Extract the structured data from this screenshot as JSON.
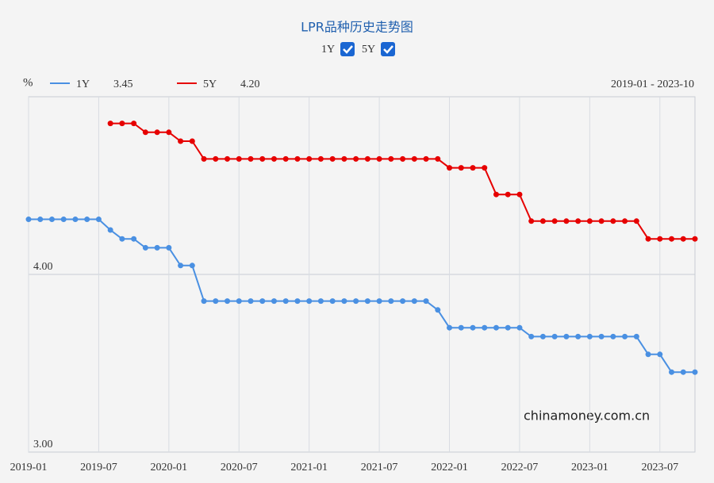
{
  "chart_data": {
    "type": "line",
    "title": "LPR品种历史走势图",
    "y_unit": "%",
    "date_range": "2019-01 - 2023-10",
    "watermark": "chinamoney.com.cn",
    "categories": [
      "2019-01",
      null,
      null,
      null,
      null,
      null,
      "2019-07",
      null,
      null,
      null,
      null,
      null,
      "2020-01",
      null,
      null,
      null,
      null,
      null,
      "2020-07",
      null,
      null,
      null,
      null,
      null,
      "2021-01",
      null,
      null,
      null,
      null,
      null,
      "2021-07",
      null,
      null,
      null,
      null,
      null,
      "2022-01",
      null,
      null,
      null,
      null,
      null,
      "2022-07",
      null,
      null,
      null,
      null,
      null,
      "2023-01",
      null,
      null,
      null,
      null,
      null,
      "2023-07",
      null,
      null,
      null
    ],
    "series": [
      {
        "name": "1Y",
        "color": "#4a90e2",
        "legend_value": "3.45",
        "values": [
          4.31,
          4.31,
          4.31,
          4.31,
          4.31,
          4.31,
          4.31,
          4.25,
          4.2,
          4.2,
          4.15,
          4.15,
          4.15,
          4.05,
          4.05,
          3.85,
          3.85,
          3.85,
          3.85,
          3.85,
          3.85,
          3.85,
          3.85,
          3.85,
          3.85,
          3.85,
          3.85,
          3.85,
          3.85,
          3.85,
          3.85,
          3.85,
          3.85,
          3.85,
          3.85,
          3.8,
          3.7,
          3.7,
          3.7,
          3.7,
          3.7,
          3.7,
          3.7,
          3.65,
          3.65,
          3.65,
          3.65,
          3.65,
          3.65,
          3.65,
          3.65,
          3.65,
          3.65,
          3.55,
          3.55,
          3.45,
          3.45,
          3.45
        ]
      },
      {
        "name": "5Y",
        "color": "#e60000",
        "legend_value": "4.20",
        "values": [
          null,
          null,
          null,
          null,
          null,
          null,
          null,
          4.85,
          4.85,
          4.85,
          4.8,
          4.8,
          4.8,
          4.75,
          4.75,
          4.65,
          4.65,
          4.65,
          4.65,
          4.65,
          4.65,
          4.65,
          4.65,
          4.65,
          4.65,
          4.65,
          4.65,
          4.65,
          4.65,
          4.65,
          4.65,
          4.65,
          4.65,
          4.65,
          4.65,
          4.65,
          4.6,
          4.6,
          4.6,
          4.6,
          4.45,
          4.45,
          4.45,
          4.3,
          4.3,
          4.3,
          4.3,
          4.3,
          4.3,
          4.3,
          4.3,
          4.3,
          4.3,
          4.2,
          4.2,
          4.2,
          4.2,
          4.2
        ]
      }
    ],
    "ylim": [
      3,
      5
    ],
    "yticks": [
      {
        "value": 3,
        "label": "3.00"
      },
      {
        "value": 4,
        "label": "4.00"
      }
    ],
    "grid": true
  }
}
